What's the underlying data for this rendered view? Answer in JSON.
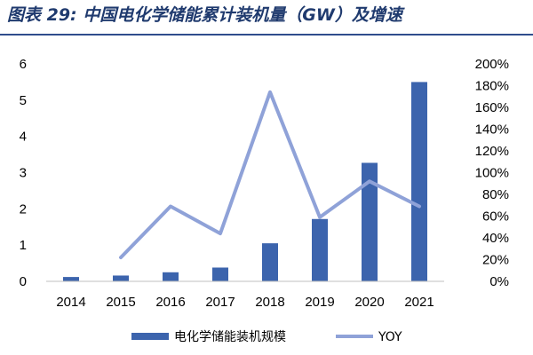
{
  "header": {
    "title": "图表 29: 中国电化学储能累计装机量（GW）及增速"
  },
  "colors": {
    "bar": "#3c64ad",
    "line": "#8fa2d8",
    "title": "#1f3a6e",
    "rule": "#2f4d8c"
  },
  "chart_data": {
    "type": "bar",
    "categories": [
      "2014",
      "2015",
      "2016",
      "2017",
      "2018",
      "2019",
      "2020",
      "2021"
    ],
    "series": [
      {
        "name": "电化学储能装机规模",
        "type": "bar",
        "axis": "left",
        "values": [
          0.12,
          0.16,
          0.25,
          0.38,
          1.05,
          1.72,
          3.27,
          5.5
        ]
      },
      {
        "name": "YOY",
        "type": "line",
        "axis": "right",
        "values": [
          null,
          0.22,
          0.69,
          0.44,
          1.74,
          0.59,
          0.92,
          0.69
        ]
      }
    ],
    "ylim_left": [
      0,
      6
    ],
    "yticks_left": [
      "0",
      "1",
      "2",
      "3",
      "4",
      "5",
      "6"
    ],
    "ylim_right": [
      0,
      2
    ],
    "yticks_right": [
      "0%",
      "20%",
      "40%",
      "60%",
      "80%",
      "100%",
      "120%",
      "140%",
      "160%",
      "180%",
      "200%"
    ],
    "grid": false,
    "legend_position": "bottom"
  }
}
